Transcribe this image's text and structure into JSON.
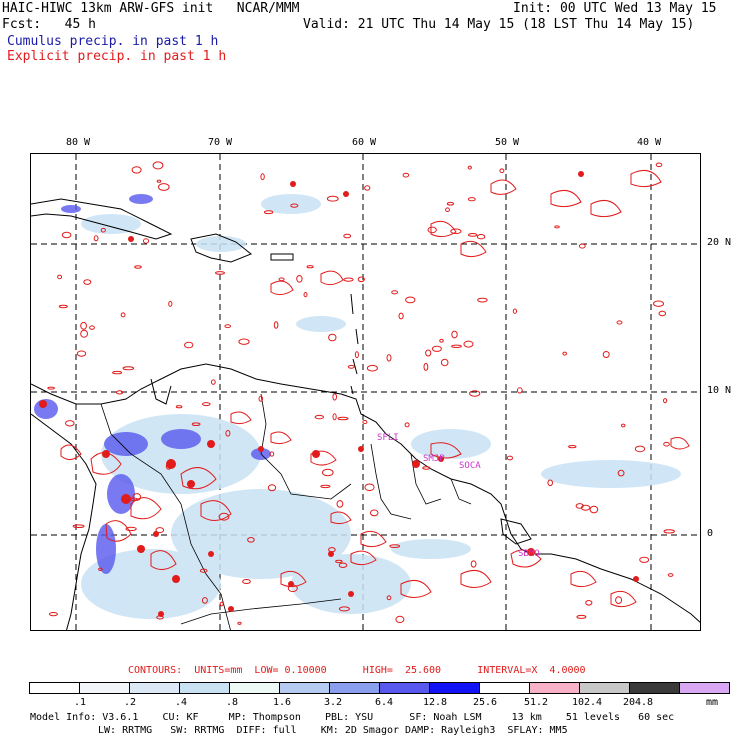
{
  "header": {
    "line1_left": "HAIC-HIWC 13km ARW-GFS init   NCAR/MMM",
    "line1_right": "Init: 00 UTC Wed 13 May 15",
    "line2_left": "Fcst:   45 h",
    "line2_right": "Valid: 21 UTC Thu 14 May 15 (18 LST Thu 14 May 15)",
    "legend_cumulus": "Cumulus precip. in past 1 h",
    "legend_explicit": "Explicit precip. in past 1 h"
  },
  "colors": {
    "cumulus": "#1a1aa8",
    "explicit": "#e21b1b",
    "station": "#cc33cc"
  },
  "map": {
    "lon_labels": [
      "80 W",
      "70 W",
      "60 W",
      "50 W",
      "40 W"
    ],
    "lat_labels": [
      "20 N",
      "10 N",
      "0"
    ],
    "stations": [
      "SFLI",
      "SMJP",
      "SOCA",
      "SBMQ"
    ]
  },
  "contours": {
    "text": "CONTOURS:  UNITS=mm  LOW= 0.10000      HIGH=  25.600      INTERVAL=X  4.0000"
  },
  "colorbar": {
    "labels": [
      ".1",
      ".2",
      ".4",
      ".8",
      "1.6",
      "3.2",
      "6.4",
      "12.8",
      "25.6",
      "51.2",
      "102.4",
      "204.8"
    ],
    "unit": "mm",
    "colors": [
      "#ffffff",
      "#f2f6fb",
      "#dce8f6",
      "#c8e2f4",
      "#eefaf6",
      "#b5cbf0",
      "#8aa0ef",
      "#5858ee",
      "#1212f4",
      "#ffffff",
      "#f7b2c8",
      "#c8c8c8",
      "#3a3a3a",
      "#d8a8f2"
    ]
  },
  "footer": {
    "line1": "Model Info: V3.6.1    CU: KF     MP: Thompson    PBL: YSU      SF: Noah LSM     13 km    51 levels   60 sec",
    "line2": "LW: RRTMG   SW: RRTMG  DIFF: full    KM: 2D Smagor DAMP: Rayleigh3  SFLAY: MM5"
  }
}
